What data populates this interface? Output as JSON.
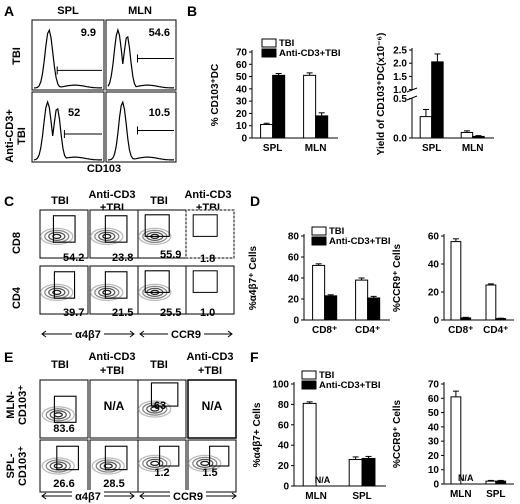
{
  "panels": {
    "A": {
      "letter": "A",
      "cols": [
        "SPL",
        "MLN"
      ],
      "rows": [
        "TBI",
        "Anti-CD3+",
        "TBI"
      ],
      "values": [
        "9.9",
        "54.6",
        "52",
        "10.5"
      ],
      "xlabel": "CD103"
    },
    "C": {
      "letter": "C",
      "cols": [
        "TBI",
        "Anti-CD3",
        "+TBI",
        "TBI",
        "Anti-CD3",
        "+TBI"
      ],
      "rows": [
        "CD8",
        "CD4"
      ],
      "values": [
        "54.2",
        "23.8",
        "55.9",
        "1.8",
        "39.7",
        "21.5",
        "25.5",
        "1.0"
      ],
      "xlabels": [
        "α4β7",
        "CCR9"
      ]
    },
    "E": {
      "letter": "E",
      "cols": [
        "TBI",
        "Anti-CD3",
        "+TBI",
        "TBI",
        "Anti-CD3",
        "+TBI"
      ],
      "rows": [
        "MLN-",
        "CD103⁺",
        "SPL-",
        "CD103⁺"
      ],
      "values": [
        "83.6",
        "N/A",
        "63",
        "N/A",
        "26.6",
        "28.5",
        "1.2",
        "1.5"
      ],
      "xlabels": [
        "α4β7",
        "CCR9"
      ]
    }
  },
  "chart_data": [
    {
      "panel": "B",
      "type": "bar",
      "categories": [
        "SPL",
        "MLN"
      ],
      "series": [
        {
          "name": "TBI",
          "color": "#ffffff",
          "values": [
            11,
            51
          ],
          "errors": [
            1,
            2
          ]
        },
        {
          "name": "Anti-CD3+TBI",
          "color": "#000000",
          "values": [
            51,
            18
          ],
          "errors": [
            1.5,
            2.5
          ]
        }
      ],
      "ylabel": "% CD103⁺DC",
      "ylim": [
        0,
        70
      ],
      "yticks": [
        "0",
        "10",
        "20",
        "30",
        "40",
        "50",
        "60",
        "70"
      ]
    },
    {
      "panel": "B2",
      "type": "bar",
      "categories": [
        "SPL",
        "MLN"
      ],
      "series": [
        {
          "name": "TBI",
          "color": "#ffffff",
          "values": [
            0.27,
            0.07
          ],
          "errors": [
            0.09,
            0.02
          ]
        },
        {
          "name": "Anti-CD3+TBI",
          "color": "#000000",
          "values": [
            2.05,
            0.02
          ],
          "errors": [
            0.3,
            0.01
          ]
        }
      ],
      "ylabel": "Yield of CD103⁺DC(x10⁻⁶)",
      "ylim": [
        0,
        2.5
      ],
      "yticks": [
        "0.0",
        "0.5",
        "1.0",
        "1.5",
        "2.0",
        "2.5"
      ],
      "break": [
        0.5,
        1.0
      ]
    },
    {
      "panel": "D",
      "type": "bar",
      "categories": [
        "CD8⁺",
        "CD4⁺"
      ],
      "series": [
        {
          "name": "TBI",
          "color": "#ffffff",
          "values": [
            52,
            38
          ],
          "errors": [
            1.5,
            2
          ]
        },
        {
          "name": "Anti-CD3+TBI",
          "color": "#000000",
          "values": [
            23,
            21
          ],
          "errors": [
            1,
            1.5
          ]
        }
      ],
      "ylabel": "%α4β7⁺ Cells",
      "ylim": [
        0,
        80
      ],
      "yticks": [
        "0",
        "20",
        "40",
        "60",
        "80"
      ]
    },
    {
      "panel": "D2",
      "type": "bar",
      "categories": [
        "CD8⁺",
        "CD4⁺"
      ],
      "series": [
        {
          "name": "TBI",
          "color": "#ffffff",
          "values": [
            56,
            25
          ],
          "errors": [
            2,
            0.8
          ]
        },
        {
          "name": "Anti-CD3+TBI",
          "color": "#000000",
          "values": [
            1.5,
            1
          ],
          "errors": [
            0.4,
            0.3
          ]
        }
      ],
      "ylabel": "%CCR9⁺ Cells",
      "ylim": [
        0,
        60
      ],
      "yticks": [
        "0",
        "20",
        "40",
        "60"
      ]
    },
    {
      "panel": "F",
      "type": "bar",
      "categories": [
        "MLN",
        "SPL"
      ],
      "series": [
        {
          "name": "TBI",
          "color": "#ffffff",
          "values": [
            81,
            26
          ],
          "errors": [
            1.5,
            2.5
          ]
        },
        {
          "name": "Anti-CD3+TBI",
          "color": "#000000",
          "values": [
            null,
            27
          ],
          "errors": [
            null,
            2
          ]
        }
      ],
      "ylabel": "%α4β7+ Cells",
      "ylim": [
        0,
        100
      ],
      "yticks": [
        "0",
        "20",
        "40",
        "60",
        "80",
        "100"
      ],
      "na_label": "N/A"
    },
    {
      "panel": "F2",
      "type": "bar",
      "categories": [
        "MLN",
        "SPL"
      ],
      "series": [
        {
          "name": "TBI",
          "color": "#ffffff",
          "values": [
            61,
            2
          ],
          "errors": [
            4,
            0.5
          ]
        },
        {
          "name": "Anti-CD3+TBI",
          "color": "#000000",
          "values": [
            null,
            2
          ],
          "errors": [
            null,
            0.5
          ]
        }
      ],
      "ylabel": "%CCR9⁺ Cells",
      "ylim": [
        0,
        70
      ],
      "yticks": [
        "0",
        "10",
        "20",
        "30",
        "40",
        "50",
        "60",
        "70"
      ],
      "na_label": "N/A"
    }
  ],
  "letters": {
    "B": "B",
    "D": "D",
    "F": "F"
  }
}
